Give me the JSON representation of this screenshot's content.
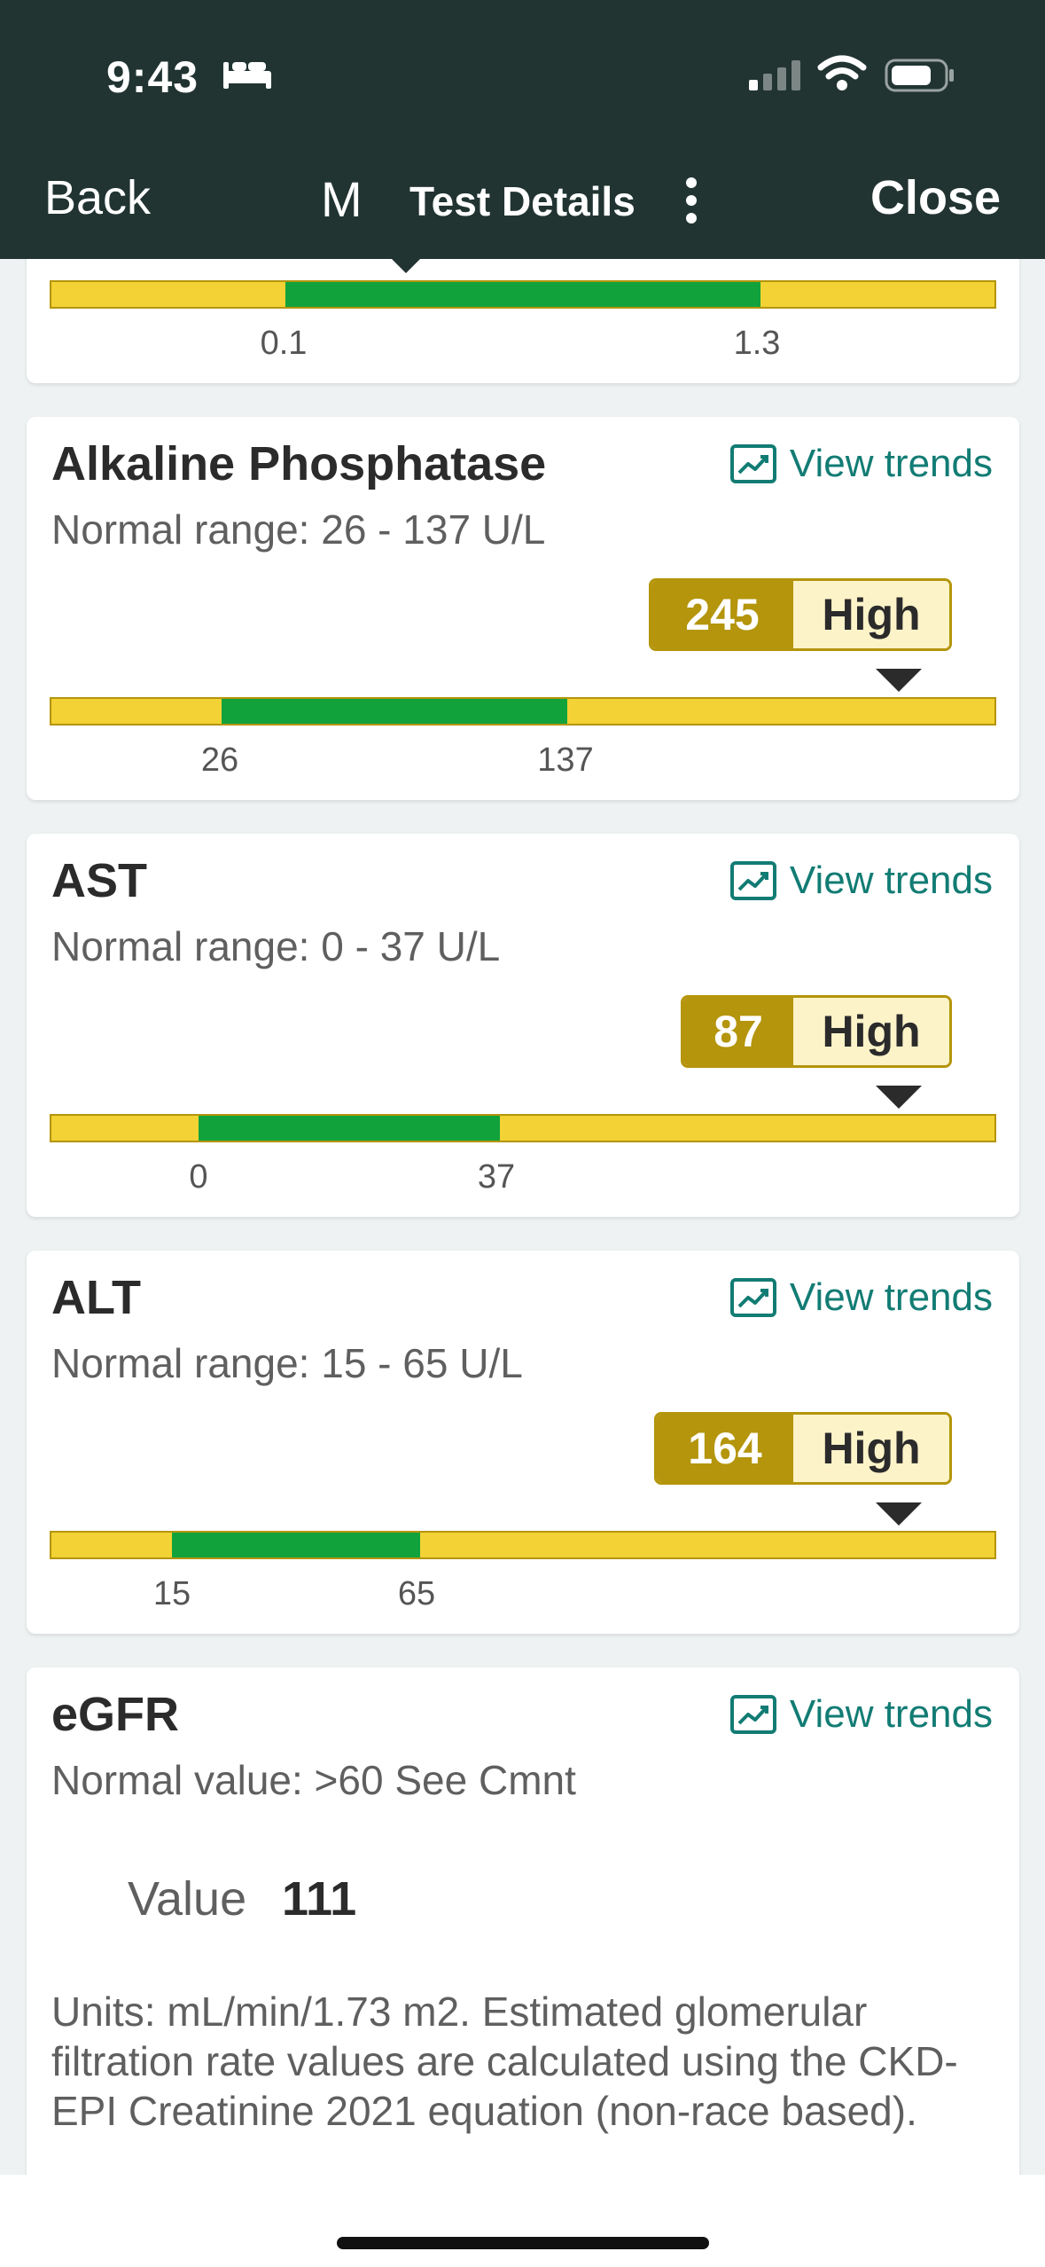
{
  "status_bar": {
    "time": "9:43"
  },
  "nav": {
    "back_label": "Back",
    "avatar_letter": "M",
    "title": "Test Details",
    "close_label": "Close"
  },
  "partial_card": {
    "ticks": [
      "0.1",
      "1.3"
    ]
  },
  "cards": [
    {
      "title": "Alkaline Phosphatase",
      "trend_label": "View trends",
      "range": "Normal range: 26 - 137 U/L",
      "value": "245",
      "flag": "High",
      "ticks": [
        "26",
        "137"
      ]
    },
    {
      "title": "AST",
      "trend_label": "View trends",
      "range": "Normal range: 0 - 37 U/L",
      "value": "87",
      "flag": "High",
      "ticks": [
        "0",
        "37"
      ]
    },
    {
      "title": "ALT",
      "trend_label": "View trends",
      "range": "Normal range: 15 - 65 U/L",
      "value": "164",
      "flag": "High",
      "ticks": [
        "15",
        "65"
      ]
    }
  ],
  "egfr": {
    "title": "eGFR",
    "trend_label": "View trends",
    "range": "Normal value: >60 See Cmnt",
    "value_label": "Value",
    "value": "111",
    "note": "Units: mL/min/1.73 m2. Estimated glomerular filtration rate values are calculated using the CKD-EPI Creatinine 2021 equation (non-race based)."
  },
  "colors": {
    "header_bg": "#213432",
    "accent_teal": "#127c74",
    "normal_green": "#12a23c",
    "out_of_range_yellow": "#f2d234",
    "high_badge": "#b4950b"
  },
  "icons": {
    "trend": "trend-chart-icon",
    "more": "kebab-menu-icon",
    "sleep": "bed-icon",
    "signal": "cellular-signal-icon",
    "wifi": "wifi-icon",
    "battery": "battery-icon"
  }
}
